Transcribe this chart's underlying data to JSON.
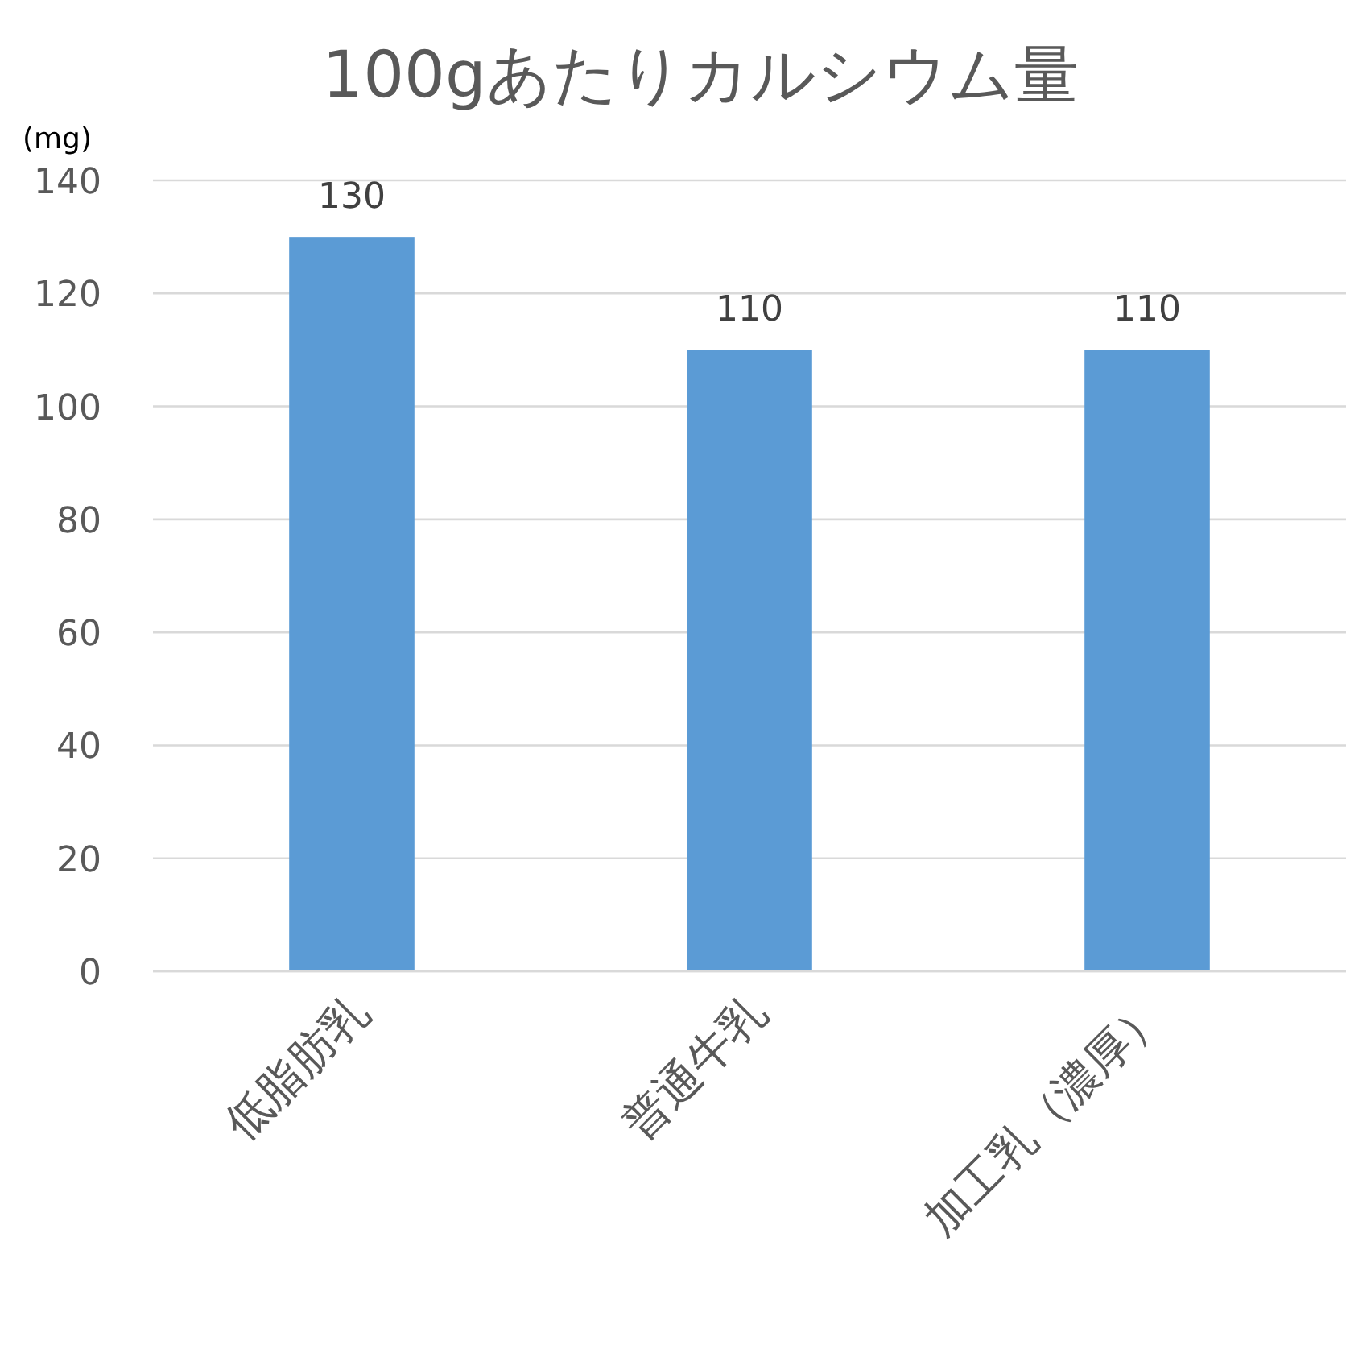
{
  "chart_data": {
    "type": "bar",
    "title": "100gあたりカルシウム量",
    "ylabel": "(mg)",
    "categories": [
      "低脂肪乳",
      "普通牛乳",
      "加工乳（濃厚）"
    ],
    "values": [
      130,
      110,
      110
    ],
    "color": "#5b9bd5",
    "ylim": [
      0,
      140
    ],
    "yticks": [
      0,
      20,
      40,
      60,
      80,
      100,
      120,
      140
    ],
    "grid": "y",
    "data_labels": true
  }
}
